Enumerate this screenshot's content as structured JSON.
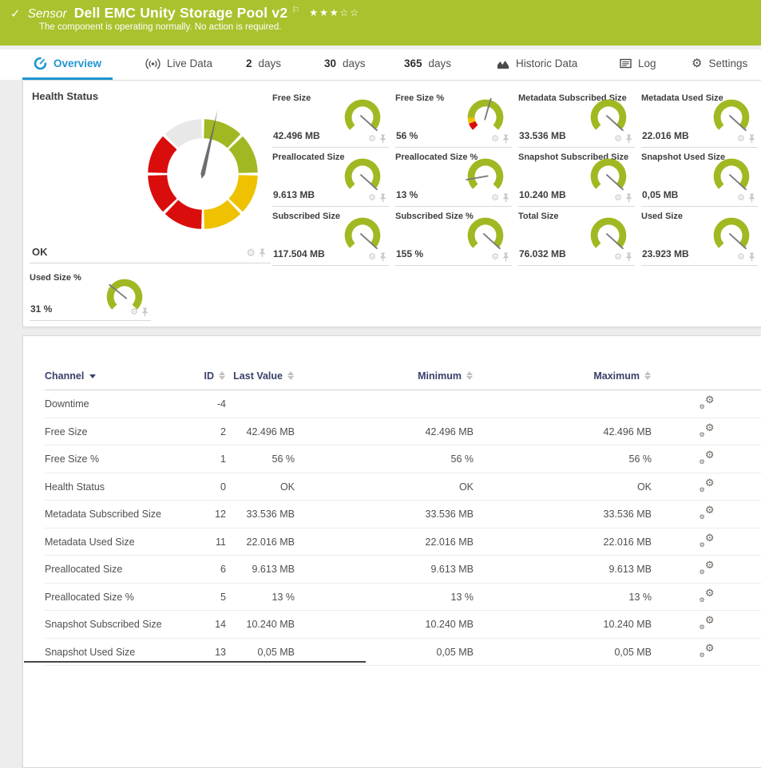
{
  "header": {
    "check": "✓",
    "kind": "Sensor",
    "title": "Dell EMC Unity Storage Pool v2",
    "flag": "⚐",
    "stars": "★★★☆☆",
    "status_message": "The component is operating normally. No action is required."
  },
  "tabs": {
    "items": [
      {
        "label": "Overview",
        "active": true
      },
      {
        "label": "Live Data"
      },
      {
        "num": "2",
        "label": "days"
      },
      {
        "num": "30",
        "label": "days"
      },
      {
        "num": "365",
        "label": "days"
      },
      {
        "label": "Historic Data"
      },
      {
        "label": "Log"
      },
      {
        "label": "Settings"
      }
    ]
  },
  "colors": {
    "banner_green": "#a9c22d",
    "accent_blue": "#2196cf",
    "gauge_green": "#a2b822",
    "gauge_yellow": "#eec200",
    "gauge_red": "#da0d0d",
    "gauge_grey": "#e8e8e8",
    "table_header_blue": "#38406a"
  },
  "health_gauge": {
    "label": "Health Status",
    "value": "OK",
    "needle_deg": 77,
    "segment_colors": [
      "#a2b822",
      "#a2b822",
      "#eec200",
      "#eec200",
      "#da0d0d",
      "#da0d0d",
      "#da0d0d",
      "#e8e8e8"
    ]
  },
  "mini_gauges": [
    {
      "label": "Free Size",
      "value": "42.496 MB",
      "needle_deg": -42,
      "segments": [
        {
          "from": 0,
          "to": 100,
          "color": "#a2b822"
        }
      ]
    },
    {
      "label": "Free Size %",
      "value": "56 %",
      "needle_deg": 74,
      "segments": [
        {
          "from": 0,
          "to": 9,
          "color": "#da0d0d"
        },
        {
          "from": 9,
          "to": 16,
          "color": "#eec200"
        },
        {
          "from": 16,
          "to": 100,
          "color": "#a2b822"
        }
      ]
    },
    {
      "label": "Metadata Subscribed Size",
      "value": "33.536 MB",
      "needle_deg": -42,
      "segments": [
        {
          "from": 0,
          "to": 100,
          "color": "#a2b822"
        }
      ]
    },
    {
      "label": "Metadata Used Size",
      "value": "22.016 MB",
      "needle_deg": -42,
      "segments": [
        {
          "from": 0,
          "to": 100,
          "color": "#a2b822"
        }
      ]
    },
    {
      "label": "Preallocated Size",
      "value": "9.613 MB",
      "needle_deg": -42,
      "segments": [
        {
          "from": 0,
          "to": 100,
          "color": "#a2b822"
        }
      ]
    },
    {
      "label": "Preallocated Size %",
      "value": "13 %",
      "needle_deg": 190,
      "segments": [
        {
          "from": 0,
          "to": 100,
          "color": "#a2b822"
        }
      ]
    },
    {
      "label": "Snapshot Subscribed Size",
      "value": "10.240 MB",
      "needle_deg": -42,
      "segments": [
        {
          "from": 0,
          "to": 100,
          "color": "#a2b822"
        }
      ]
    },
    {
      "label": "Snapshot Used Size",
      "value": "0,05 MB",
      "needle_deg": -42,
      "segments": [
        {
          "from": 0,
          "to": 100,
          "color": "#a2b822"
        }
      ]
    },
    {
      "label": "Subscribed Size",
      "value": "117.504 MB",
      "needle_deg": -42,
      "segments": [
        {
          "from": 0,
          "to": 100,
          "color": "#a2b822"
        }
      ]
    },
    {
      "label": "Subscribed Size %",
      "value": "155 %",
      "needle_deg": -42,
      "segments": [
        {
          "from": 0,
          "to": 100,
          "color": "#a2b822"
        }
      ]
    },
    {
      "label": "Total Size",
      "value": "76.032 MB",
      "needle_deg": -42,
      "segments": [
        {
          "from": 0,
          "to": 100,
          "color": "#a2b822"
        }
      ]
    },
    {
      "label": "Used Size",
      "value": "23.923 MB",
      "needle_deg": -42,
      "segments": [
        {
          "from": 0,
          "to": 100,
          "color": "#a2b822"
        }
      ]
    },
    {
      "label": "Used Size %",
      "value": "31 %",
      "needle_deg": 141,
      "segments": [
        {
          "from": 0,
          "to": 100,
          "color": "#a2b822"
        }
      ]
    }
  ],
  "table": {
    "headers": {
      "channel": "Channel",
      "id": "ID",
      "last": "Last Value",
      "min": "Minimum",
      "max": "Maximum"
    },
    "rows": [
      {
        "channel": "Downtime",
        "id": "-4",
        "last": "",
        "min": "",
        "max": ""
      },
      {
        "channel": "Free Size",
        "id": "2",
        "last": "42.496 MB",
        "min": "42.496 MB",
        "max": "42.496 MB"
      },
      {
        "channel": "Free Size %",
        "id": "1",
        "last": "56 %",
        "min": "56 %",
        "max": "56 %"
      },
      {
        "channel": "Health Status",
        "id": "0",
        "last": "OK",
        "min": "OK",
        "max": "OK"
      },
      {
        "channel": "Metadata Subscribed Size",
        "id": "12",
        "last": "33.536 MB",
        "min": "33.536 MB",
        "max": "33.536 MB"
      },
      {
        "channel": "Metadata Used Size",
        "id": "11",
        "last": "22.016 MB",
        "min": "22.016 MB",
        "max": "22.016 MB"
      },
      {
        "channel": "Preallocated Size",
        "id": "6",
        "last": "9.613 MB",
        "min": "9.613 MB",
        "max": "9.613 MB"
      },
      {
        "channel": "Preallocated Size %",
        "id": "5",
        "last": "13 %",
        "min": "13 %",
        "max": "13 %"
      },
      {
        "channel": "Snapshot Subscribed Size",
        "id": "14",
        "last": "10.240 MB",
        "min": "10.240 MB",
        "max": "10.240 MB"
      },
      {
        "channel": "Snapshot Used Size",
        "id": "13",
        "last": "0,05 MB",
        "min": "0,05 MB",
        "max": "0,05 MB"
      }
    ]
  }
}
